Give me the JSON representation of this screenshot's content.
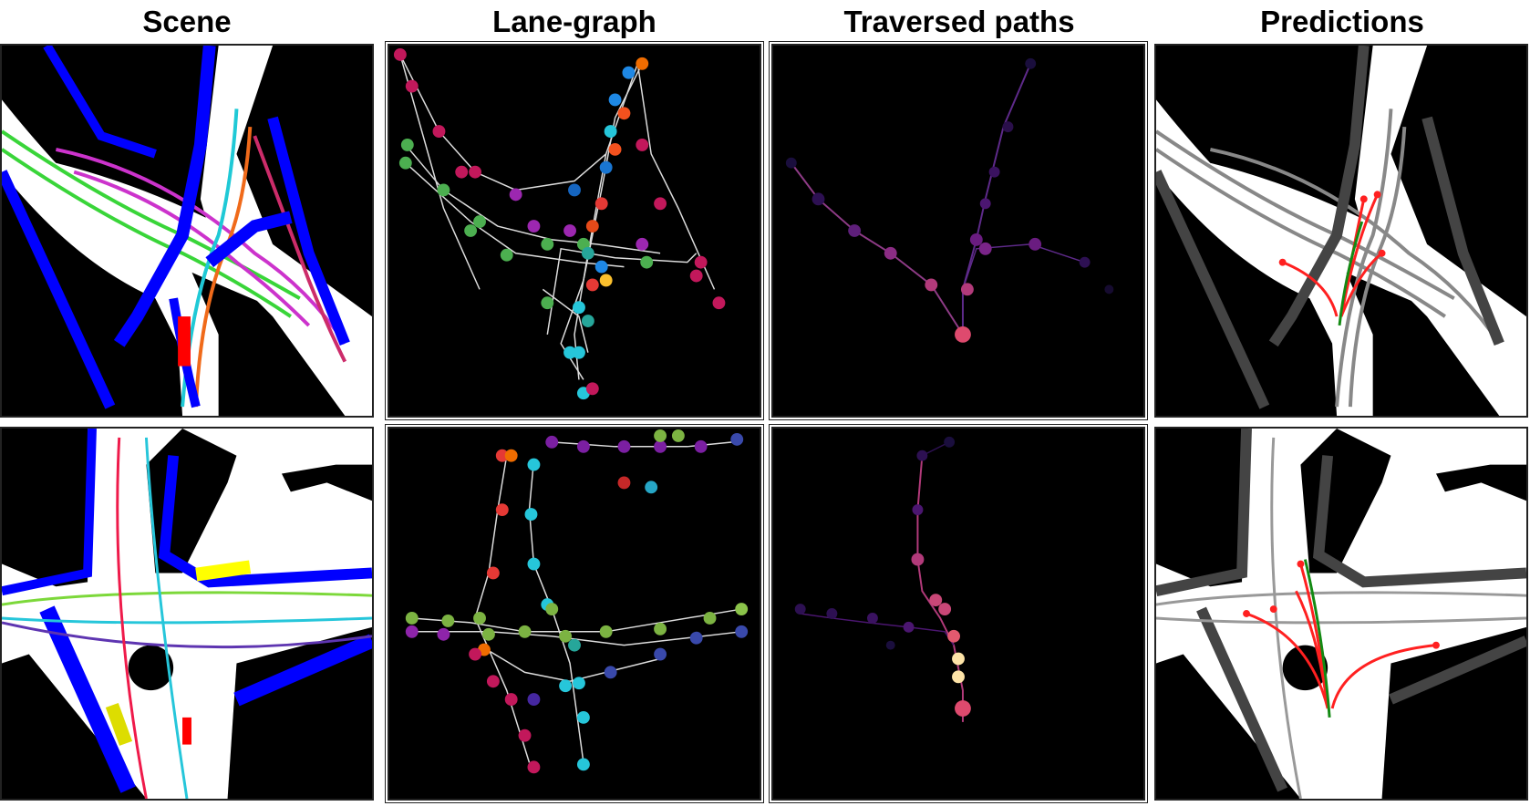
{
  "columns": {
    "scene": "Scene",
    "lane_graph": "Lane-graph",
    "traversed_paths": "Traversed paths",
    "predictions": "Predictions"
  },
  "colors": {
    "road": "#ffffff",
    "background": "#000000",
    "ped_crossing": "#0000ff",
    "agent": "#ff0000",
    "prediction": "#ff2020",
    "ground_truth": "#138a13",
    "other_vehicle": "#ffff00"
  }
}
